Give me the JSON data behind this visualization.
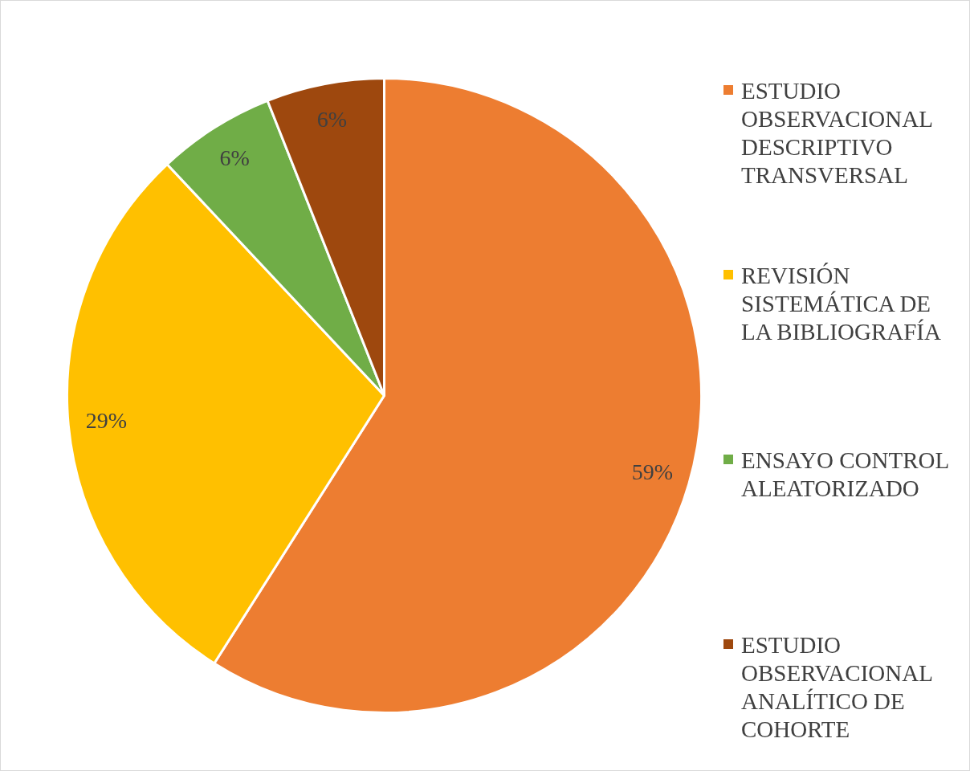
{
  "chart_data": {
    "type": "pie",
    "categories": [
      "ESTUDIO OBSERVACIONAL DESCRIPTIVO TRANSVERSAL",
      "REVISIÓN SISTEMÁTICA DE LA BIBLIOGRAFÍA",
      "ENSAYO CONTROL ALEATORIZADO",
      "ESTUDIO OBSERVACIONAL ANALÍTICO DE COHORTE"
    ],
    "values": [
      59,
      29,
      6,
      6
    ],
    "colors": [
      "#ed7d31",
      "#ffc000",
      "#70ad47",
      "#9e480e"
    ],
    "value_labels": [
      "59%",
      "29%",
      "6%",
      "6%"
    ],
    "legend": "right"
  }
}
